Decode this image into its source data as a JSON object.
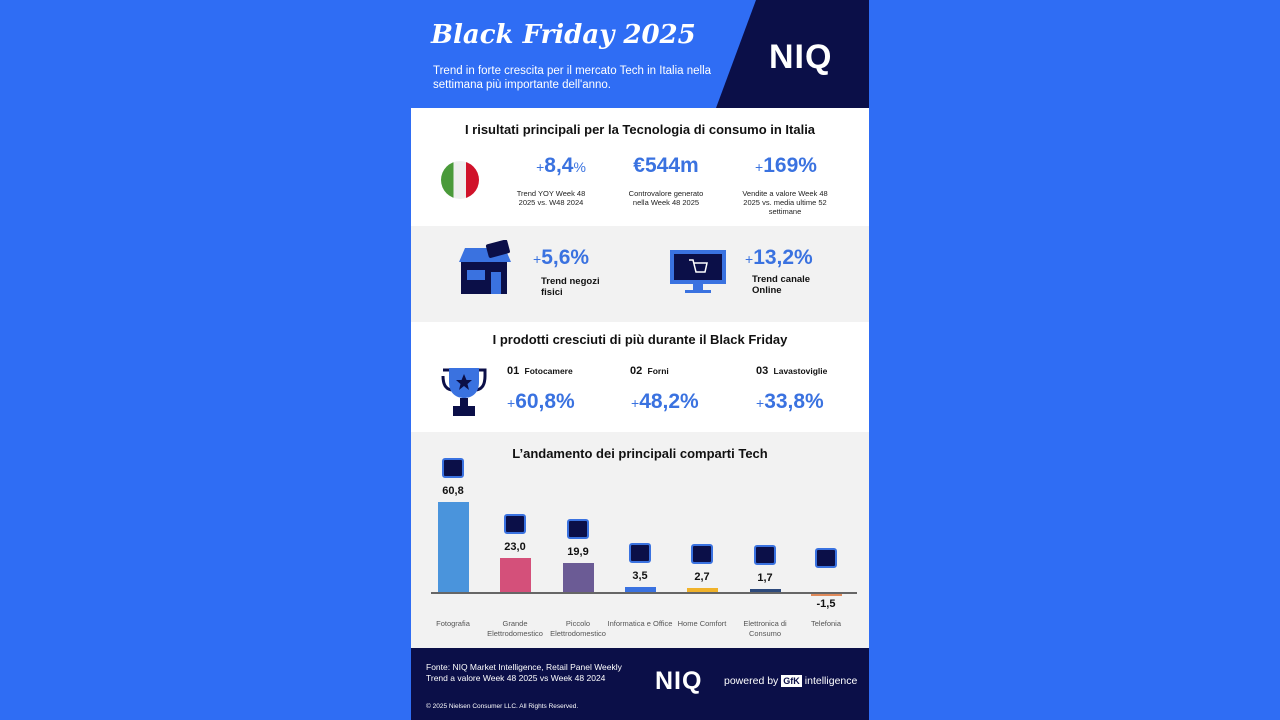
{
  "header": {
    "title": "Black Friday 2025",
    "subtitle": "Trend in forte crescita per il mercato Tech in Italia nella settimana più importante dell'anno.",
    "logo": "NIQ"
  },
  "kpi_section": {
    "heading": "I risultati principali per la Tecnologia di consumo in Italia",
    "flag_icon": "italy-flag-icon",
    "items": [
      {
        "value": "8,4",
        "prefix": "+",
        "suffix": "%",
        "caption": "Trend YOY Week 48 2025 vs. W48 2024"
      },
      {
        "value": "€544m",
        "caption": "Controvalore generato nella Week 48 2025"
      },
      {
        "value": "169%",
        "prefix": "+",
        "caption": "Vendite a valore Week 48 2025 vs. media ultime 52 settimane"
      }
    ]
  },
  "channels": [
    {
      "icon": "store-icon",
      "prefix": "+",
      "value": "5,6%",
      "label": "Trend negozi fisici"
    },
    {
      "icon": "monitor-cart-icon",
      "prefix": "+",
      "value": "13,2%",
      "label": "Trend canale Online"
    }
  ],
  "products": {
    "heading": "I prodotti cresciuti di più durante il Black Friday",
    "icon": "trophy-icon",
    "items": [
      {
        "rank": "01",
        "name": "Fotocamere",
        "prefix": "+",
        "value": "60,8%"
      },
      {
        "rank": "02",
        "name": "Forni",
        "prefix": "+",
        "value": "48,2%"
      },
      {
        "rank": "03",
        "name": "Lavastoviglie",
        "prefix": "+",
        "value": "33,8%"
      }
    ]
  },
  "chart_data": {
    "type": "bar",
    "title": "L’andamento dei principali comparti Tech",
    "categories": [
      "Fotografia",
      "Grande Elettrodomestico",
      "Piccolo Elettrodomestico",
      "Informatica e Office",
      "Home Comfort",
      "Elettronica di Consumo",
      "Telefonia"
    ],
    "values": [
      60.8,
      23.0,
      19.9,
      3.5,
      2.7,
      1.7,
      -1.5
    ],
    "value_labels": [
      "60,8",
      "23,0",
      "19,9",
      "3,5",
      "2,7",
      "1,7",
      "-1,5"
    ],
    "colors": [
      "#4a94dc",
      "#d4507a",
      "#6b5b95",
      "#3a72e0",
      "#f0b22a",
      "#2d4a7c",
      "#e08a5a"
    ],
    "icons": [
      "camera-icon",
      "washing-machine-icon",
      "hair-dryer-icon",
      "laptop-icon",
      "air-conditioner-icon",
      "tv-icon",
      "smartphone-icon"
    ],
    "grid": false
  },
  "footer": {
    "source_line1": "Fonte: NIQ Market Intelligence, Retail Panel Weekly",
    "source_line2": "Trend a valore Week 48 2025 vs Week 48 2024",
    "logo": "NIQ",
    "powered_by": "powered by",
    "gfk": "GfK",
    "intelligence": "intelligence",
    "copyright": "© 2025 Nielsen Consumer LLC. All Rights Reserved."
  }
}
